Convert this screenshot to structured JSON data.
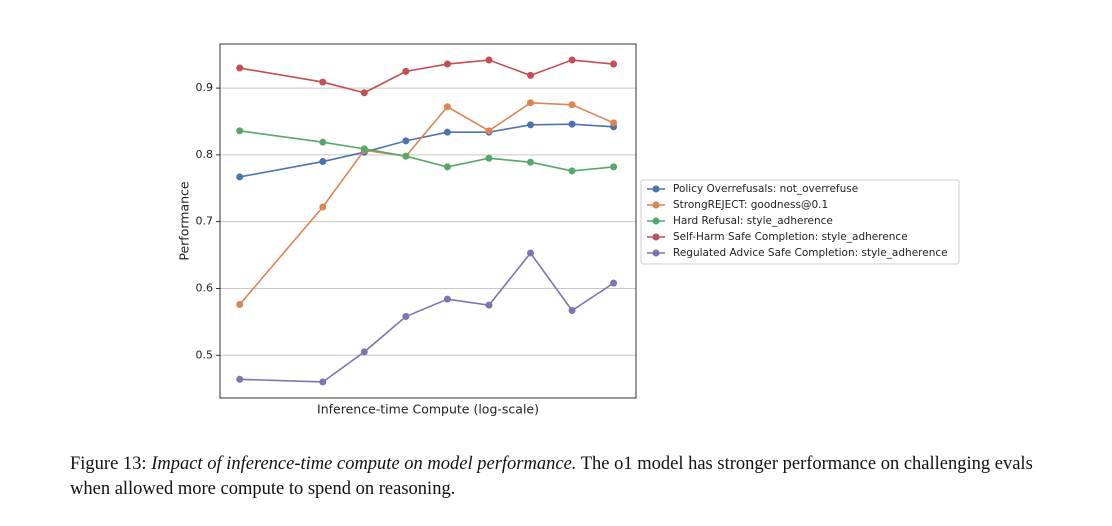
{
  "chart_data": {
    "type": "line",
    "xlabel": "Inference-time Compute (log-scale)",
    "ylabel": "Performance",
    "xscale": "log",
    "x": [
      1,
      4,
      8,
      16,
      32,
      64,
      128,
      256,
      512
    ],
    "xlim": [
      0.72,
      744
    ],
    "ylim": [
      0.436,
      0.966
    ],
    "yticks": [
      0.5,
      0.6,
      0.7,
      0.8,
      0.9
    ],
    "grid": true,
    "legend": "outside right",
    "series": [
      {
        "name": "Policy Overrefusals: not_overrefuse",
        "color": "#4c72b0",
        "values": [
          0.767,
          0.79,
          0.804,
          0.821,
          0.834,
          0.834,
          0.845,
          0.846,
          0.842
        ]
      },
      {
        "name": "StrongREJECT: goodness@0.1",
        "color": "#dd8452",
        "values": [
          0.576,
          0.722,
          0.807,
          0.798,
          0.872,
          0.836,
          0.878,
          0.875,
          0.848
        ]
      },
      {
        "name": "Hard Refusal: style_adherence",
        "color": "#55a868",
        "values": [
          0.836,
          0.819,
          0.809,
          0.798,
          0.782,
          0.795,
          0.789,
          0.776,
          0.782
        ]
      },
      {
        "name": "Self-Harm Safe Completion: style_adherence",
        "color": "#c44e52",
        "values": [
          0.93,
          0.909,
          0.893,
          0.925,
          0.936,
          0.942,
          0.919,
          0.942,
          0.936
        ]
      },
      {
        "name": "Regulated Advice Safe Completion: style_adherence",
        "color": "#8172b3",
        "values": [
          0.464,
          0.46,
          0.505,
          0.558,
          0.584,
          0.575,
          0.653,
          0.567,
          0.608
        ]
      }
    ]
  },
  "caption": {
    "label": "Figure 13:",
    "emphasis": "Impact of inference-time compute on model performance.",
    "text": "The o1 model has stronger performance on challenging evals when allowed more compute to spend on reasoning."
  }
}
